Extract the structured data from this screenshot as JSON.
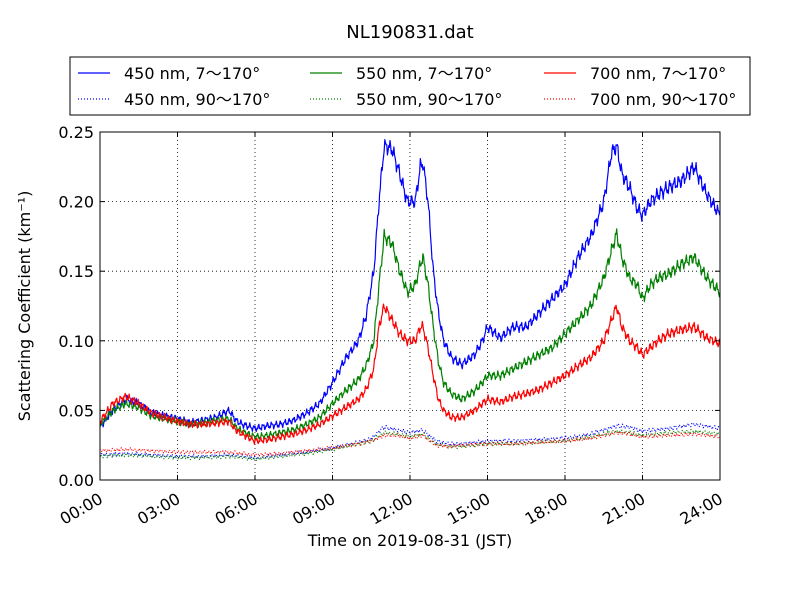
{
  "chart_data": {
    "type": "line",
    "title": "NL190831.dat",
    "xlabel": "Time on 2019-08-31 (JST)",
    "ylabel": "Scattering Coefficient (km⁻¹)",
    "xlim": [
      0,
      24
    ],
    "ylim": [
      0,
      0.25
    ],
    "grid": true,
    "legend_position": "top",
    "x_ticks": [
      "00:00",
      "03:00",
      "06:00",
      "09:00",
      "12:00",
      "15:00",
      "18:00",
      "21:00",
      "24:00"
    ],
    "y_ticks": [
      "0.00",
      "0.05",
      "0.10",
      "0.15",
      "0.20",
      "0.25"
    ],
    "x_unit": "hours",
    "series": [
      {
        "name": "450 nm, 7～170°",
        "color": "#0000ff",
        "dash": "solid",
        "x": [
          0,
          0.5,
          1,
          1.5,
          2,
          2.5,
          3,
          3.5,
          4,
          4.5,
          5,
          5.25,
          5.5,
          6,
          6.5,
          7,
          7.5,
          8,
          8.5,
          9,
          9.5,
          10,
          10.3,
          10.6,
          10.8,
          11,
          11.3,
          11.6,
          11.9,
          12.2,
          12.4,
          12.5,
          12.7,
          12.9,
          13.1,
          13.3,
          13.6,
          14,
          14.5,
          14.8,
          15,
          15.5,
          16,
          16.5,
          17,
          17.5,
          18,
          18.5,
          19,
          19.5,
          19.8,
          20,
          20.2,
          20.5,
          20.8,
          21,
          21.3,
          21.6,
          22,
          22.5,
          23,
          23.5,
          24
        ],
        "y": [
          0.038,
          0.05,
          0.058,
          0.055,
          0.048,
          0.046,
          0.044,
          0.041,
          0.043,
          0.045,
          0.05,
          0.043,
          0.04,
          0.037,
          0.039,
          0.04,
          0.043,
          0.048,
          0.055,
          0.07,
          0.087,
          0.1,
          0.118,
          0.15,
          0.2,
          0.24,
          0.238,
          0.22,
          0.2,
          0.2,
          0.225,
          0.228,
          0.2,
          0.15,
          0.12,
          0.1,
          0.088,
          0.083,
          0.09,
          0.1,
          0.11,
          0.102,
          0.11,
          0.11,
          0.12,
          0.13,
          0.14,
          0.16,
          0.175,
          0.2,
          0.235,
          0.24,
          0.22,
          0.21,
          0.195,
          0.19,
          0.2,
          0.205,
          0.21,
          0.215,
          0.225,
          0.205,
          0.19
        ]
      },
      {
        "name": "550 nm, 7～170°",
        "color": "#008000",
        "dash": "solid",
        "x": [
          0,
          0.5,
          1,
          1.5,
          2,
          2.5,
          3,
          3.5,
          4,
          4.5,
          5,
          5.25,
          5.5,
          6,
          6.5,
          7,
          7.5,
          8,
          8.5,
          9,
          9.5,
          10,
          10.3,
          10.6,
          10.8,
          11,
          11.3,
          11.6,
          11.9,
          12.2,
          12.4,
          12.5,
          12.7,
          12.9,
          13.1,
          13.3,
          13.6,
          14,
          14.5,
          14.8,
          15,
          15.5,
          16,
          16.5,
          17,
          17.5,
          18,
          18.5,
          19,
          19.5,
          19.8,
          20,
          20.2,
          20.5,
          20.8,
          21,
          21.3,
          21.6,
          22,
          22.5,
          23,
          23.5,
          24
        ],
        "y": [
          0.04,
          0.05,
          0.055,
          0.052,
          0.046,
          0.044,
          0.042,
          0.04,
          0.041,
          0.043,
          0.044,
          0.038,
          0.035,
          0.031,
          0.032,
          0.034,
          0.036,
          0.04,
          0.045,
          0.055,
          0.064,
          0.072,
          0.082,
          0.1,
          0.14,
          0.175,
          0.17,
          0.15,
          0.135,
          0.14,
          0.155,
          0.16,
          0.14,
          0.11,
          0.085,
          0.07,
          0.062,
          0.058,
          0.064,
          0.07,
          0.075,
          0.075,
          0.08,
          0.085,
          0.09,
          0.095,
          0.105,
          0.115,
          0.125,
          0.145,
          0.165,
          0.177,
          0.16,
          0.145,
          0.14,
          0.13,
          0.14,
          0.145,
          0.148,
          0.155,
          0.16,
          0.145,
          0.135
        ]
      },
      {
        "name": "700 nm, 7～170°",
        "color": "#ff0000",
        "dash": "solid",
        "x": [
          0,
          0.5,
          1,
          1.5,
          2,
          2.5,
          3,
          3.5,
          4,
          4.5,
          5,
          5.25,
          5.5,
          6,
          6.5,
          7,
          7.5,
          8,
          8.5,
          9,
          9.5,
          10,
          10.3,
          10.6,
          10.8,
          11,
          11.3,
          11.6,
          11.9,
          12.2,
          12.4,
          12.5,
          12.7,
          12.9,
          13.1,
          13.3,
          13.6,
          14,
          14.5,
          14.8,
          15,
          15.5,
          16,
          16.5,
          17,
          17.5,
          18,
          18.5,
          19,
          19.5,
          19.8,
          20,
          20.2,
          20.5,
          20.8,
          21,
          21.3,
          21.6,
          22,
          22.5,
          23,
          23.5,
          24
        ],
        "y": [
          0.042,
          0.055,
          0.06,
          0.055,
          0.048,
          0.045,
          0.042,
          0.04,
          0.04,
          0.041,
          0.042,
          0.036,
          0.033,
          0.028,
          0.029,
          0.031,
          0.033,
          0.036,
          0.04,
          0.046,
          0.052,
          0.058,
          0.065,
          0.08,
          0.11,
          0.125,
          0.115,
          0.105,
          0.1,
          0.1,
          0.11,
          0.11,
          0.095,
          0.075,
          0.058,
          0.05,
          0.045,
          0.045,
          0.05,
          0.055,
          0.058,
          0.056,
          0.06,
          0.062,
          0.065,
          0.07,
          0.075,
          0.082,
          0.088,
          0.1,
          0.115,
          0.125,
          0.11,
          0.1,
          0.095,
          0.09,
          0.095,
          0.1,
          0.105,
          0.108,
          0.11,
          0.102,
          0.098
        ]
      },
      {
        "name": "450 nm, 90～170°",
        "color": "#0000ff",
        "dash": "dotted",
        "x": [
          0,
          1,
          2,
          3,
          4,
          5,
          6,
          7,
          8,
          9,
          10,
          10.5,
          11,
          11.5,
          12,
          12.5,
          13,
          13.5,
          14,
          15,
          16,
          17,
          18,
          19,
          20,
          20.5,
          21,
          22,
          23,
          24
        ],
        "y": [
          0.018,
          0.019,
          0.018,
          0.017,
          0.017,
          0.018,
          0.016,
          0.018,
          0.02,
          0.023,
          0.027,
          0.03,
          0.038,
          0.036,
          0.034,
          0.036,
          0.028,
          0.026,
          0.026,
          0.028,
          0.028,
          0.029,
          0.03,
          0.033,
          0.039,
          0.038,
          0.035,
          0.037,
          0.04,
          0.037
        ]
      },
      {
        "name": "550 nm, 90～170°",
        "color": "#008000",
        "dash": "dotted",
        "x": [
          0,
          1,
          2,
          3,
          4,
          5,
          6,
          7,
          8,
          9,
          10,
          10.5,
          11,
          11.5,
          12,
          12.5,
          13,
          13.5,
          14,
          15,
          16,
          17,
          18,
          19,
          20,
          20.5,
          21,
          22,
          23,
          24
        ],
        "y": [
          0.017,
          0.018,
          0.017,
          0.016,
          0.016,
          0.017,
          0.015,
          0.017,
          0.019,
          0.022,
          0.026,
          0.028,
          0.034,
          0.033,
          0.031,
          0.033,
          0.026,
          0.024,
          0.024,
          0.026,
          0.026,
          0.027,
          0.028,
          0.031,
          0.035,
          0.034,
          0.032,
          0.034,
          0.035,
          0.033
        ]
      },
      {
        "name": "700 nm, 90～170°",
        "color": "#ff0000",
        "dash": "dotted",
        "x": [
          0,
          1,
          2,
          3,
          4,
          5,
          6,
          7,
          8,
          9,
          10,
          10.5,
          11,
          11.5,
          12,
          12.5,
          13,
          13.5,
          14,
          15,
          16,
          17,
          18,
          19,
          20,
          20.5,
          21,
          22,
          23,
          24
        ],
        "y": [
          0.021,
          0.022,
          0.021,
          0.02,
          0.02,
          0.02,
          0.018,
          0.019,
          0.021,
          0.023,
          0.026,
          0.028,
          0.032,
          0.032,
          0.03,
          0.032,
          0.025,
          0.024,
          0.025,
          0.026,
          0.026,
          0.027,
          0.028,
          0.03,
          0.034,
          0.033,
          0.031,
          0.032,
          0.033,
          0.031
        ]
      }
    ]
  }
}
